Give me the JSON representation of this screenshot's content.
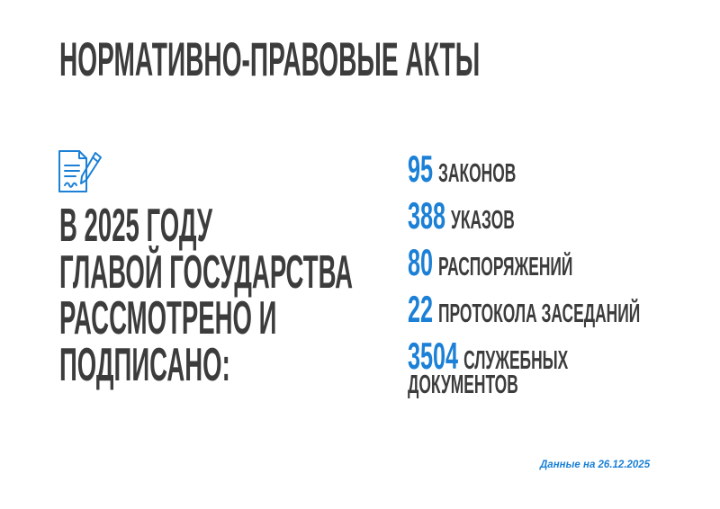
{
  "title": "НОРМАТИВНО-ПРАВОВЫЕ АКТЫ",
  "icon": "document-signature-icon",
  "accent_color": "#1b80d6",
  "lead_lines": [
    "В 2025 ГОДУ",
    "ГЛАВОЙ ГОСУДАРСТВА",
    "РАССМОТРЕНО И",
    "ПОДПИСАНО:"
  ],
  "stats": [
    {
      "value": "95",
      "label": "ЗАКОНОВ"
    },
    {
      "value": "388",
      "label": "УКАЗОВ"
    },
    {
      "value": "80",
      "label": "РАСПОРЯЖЕНИЙ"
    },
    {
      "value": "22",
      "label": "ПРОТОКОЛА ЗАСЕДАНИЙ"
    },
    {
      "value": "3504",
      "label": "СЛУЖЕБНЫХ",
      "label_cont": "ДОКУМЕНТОВ"
    }
  ],
  "note": "Данные на 26.12.2025"
}
